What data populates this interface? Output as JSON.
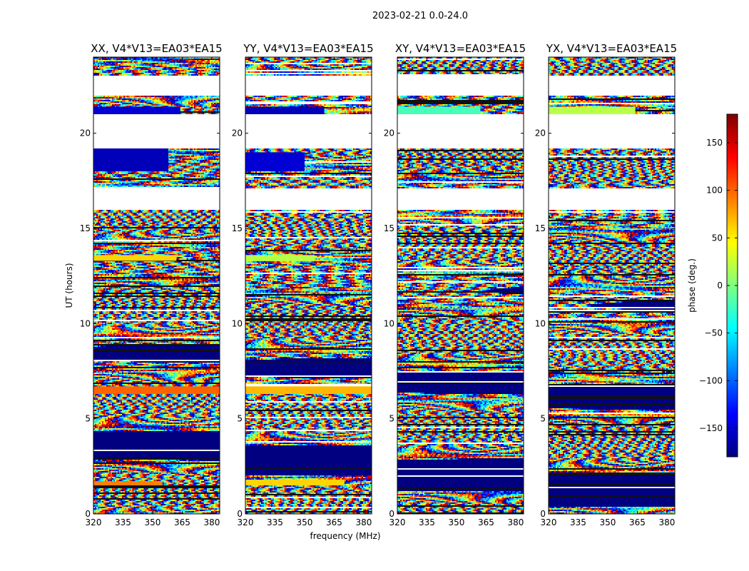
{
  "chart_data": {
    "type": "heatmap",
    "suptitle": "2023-02-21 0.0-24.0",
    "xlabel": "frequency (MHz)",
    "ylabel": "UT (hours)",
    "xlim": [
      320,
      384
    ],
    "ylim": [
      0,
      24
    ],
    "x_ticks": [
      320,
      335,
      350,
      365,
      380
    ],
    "y_ticks": [
      0,
      5,
      10,
      15,
      20
    ],
    "panels": [
      {
        "title": "XX, V4*V13=EA03*EA15",
        "correlation": "XX",
        "coherent_bands": [
          {
            "t0": 21.0,
            "t1": 21.4,
            "phase": -150,
            "f_end": 364
          },
          {
            "t0": 18.0,
            "t1": 19.2,
            "phase": -160,
            "f_end": 358
          },
          {
            "t0": 13.3,
            "t1": 13.6,
            "phase": 60,
            "f_end": 362
          },
          {
            "t0": 6.3,
            "t1": 6.7,
            "phase": 100,
            "f_end": 384
          },
          {
            "t0": 1.5,
            "t1": 1.7,
            "phase": 90,
            "f_end": 355
          }
        ]
      },
      {
        "title": "YY, V4*V13=EA03*EA15",
        "correlation": "YY",
        "coherent_bands": [
          {
            "t0": 21.0,
            "t1": 21.4,
            "phase": -160,
            "f_end": 360
          },
          {
            "t0": 18.0,
            "t1": 19.0,
            "phase": -150,
            "f_end": 350
          },
          {
            "t0": 13.3,
            "t1": 13.6,
            "phase": 20,
            "f_end": 355
          },
          {
            "t0": 6.3,
            "t1": 6.7,
            "phase": 70,
            "f_end": 384
          },
          {
            "t0": 1.5,
            "t1": 1.8,
            "phase": 60,
            "f_end": 370
          }
        ]
      },
      {
        "title": "XY, V4*V13=EA03*EA15",
        "correlation": "XY",
        "coherent_bands": [
          {
            "t0": 21.0,
            "t1": 21.4,
            "phase": -20,
            "f_end": 362
          }
        ]
      },
      {
        "title": "YX, V4*V13=EA03*EA15",
        "correlation": "YX",
        "coherent_bands": [
          {
            "t0": 21.0,
            "t1": 21.4,
            "phase": 20,
            "f_end": 364
          }
        ]
      }
    ],
    "blank_intervals_hours": [
      [
        22.0,
        23.0
      ],
      [
        19.2,
        21.0
      ],
      [
        16.0,
        17.1
      ]
    ],
    "colorbar": {
      "label": "phase (deg.)",
      "range": [
        -180,
        180
      ],
      "ticks": [
        -150,
        -100,
        -50,
        0,
        50,
        100,
        150
      ],
      "colormap": "jet"
    }
  }
}
